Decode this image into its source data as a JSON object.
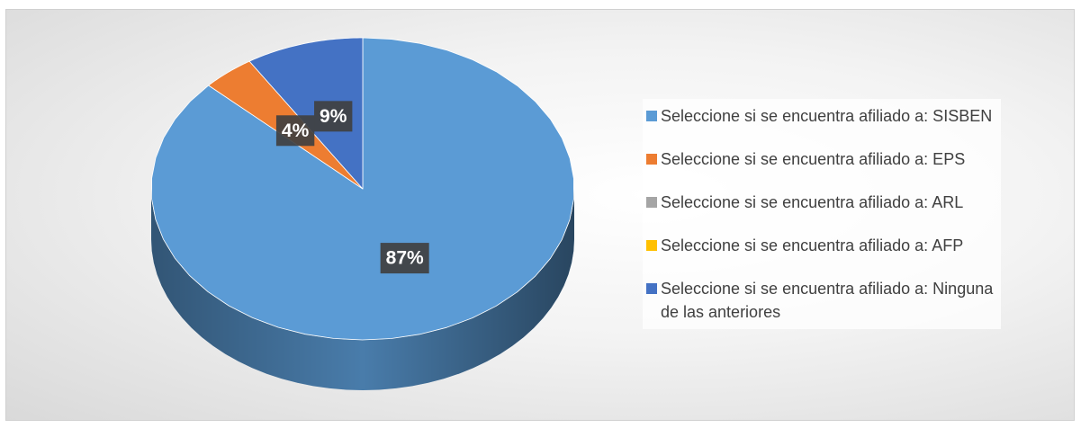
{
  "chart_data": {
    "type": "pie",
    "categories": [
      "Seleccione si se encuentra afiliado a: SISBEN",
      "Seleccione si se encuentra afiliado a: EPS",
      "Seleccione si se encuentra afiliado a: ARL",
      "Seleccione si se encuentra afiliado a: AFP",
      "Seleccione si se encuentra afiliado a: Ninguna de las anteriores"
    ],
    "values": [
      87,
      4,
      0,
      0,
      9
    ],
    "value_labels": [
      "87%",
      "4%",
      null,
      null,
      "9%"
    ],
    "colors": [
      "#5b9bd5",
      "#ed7d31",
      "#a5a5a5",
      "#ffc000",
      "#4472c4"
    ],
    "legend": "right"
  }
}
